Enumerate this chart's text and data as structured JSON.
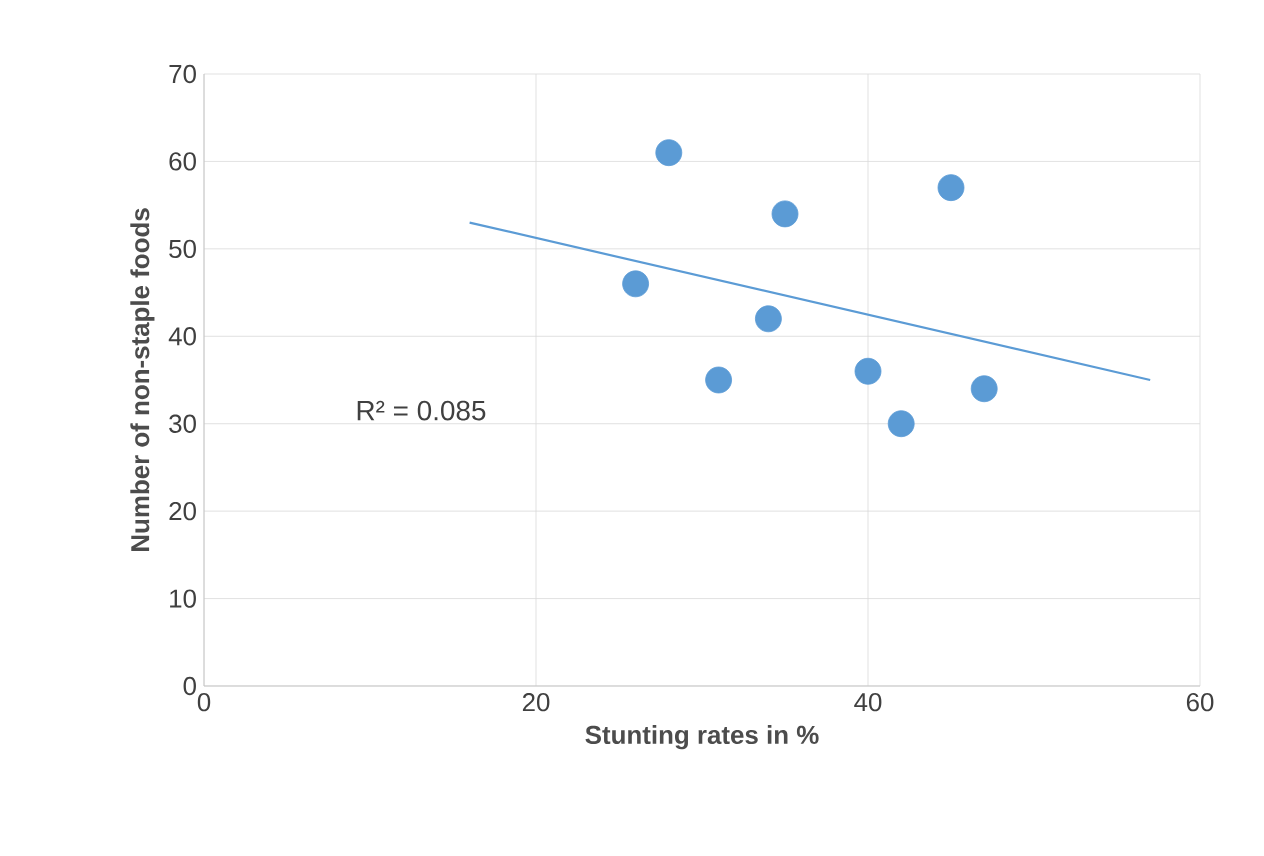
{
  "chart_data": {
    "type": "scatter",
    "xlabel": "Stunting rates in %",
    "ylabel": "Number of non-staple foods",
    "series": [
      {
        "color": "#5b9bd5",
        "x": [
          26,
          28,
          31,
          34,
          35,
          40,
          42,
          45,
          47
        ],
        "values": [
          46,
          61,
          35,
          42,
          54,
          36,
          30,
          57,
          34
        ],
        "marker": "circle"
      },
      {
        "type": "line",
        "color": "#5b9bd5",
        "x": [
          16,
          57
        ],
        "values": [
          53,
          35
        ],
        "marker": "none"
      }
    ],
    "annotations": [
      "R² = 0.085"
    ],
    "xlim": [
      0,
      60
    ],
    "xticks": [
      0,
      20,
      40,
      60
    ],
    "ylim": [
      0,
      70
    ],
    "yticks": [
      0,
      10,
      20,
      30,
      40,
      50,
      60,
      70
    ],
    "grid": true
  }
}
